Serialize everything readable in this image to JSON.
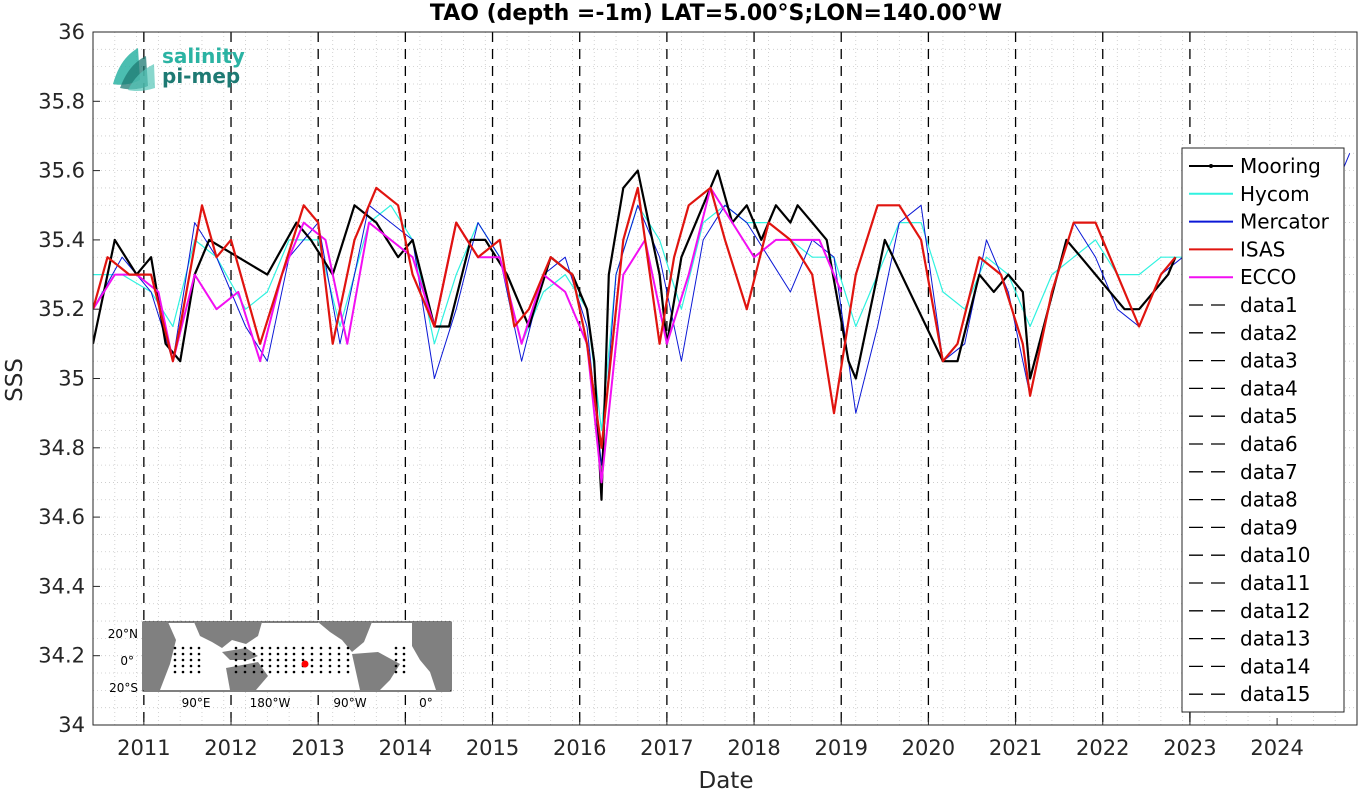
{
  "chart_data": {
    "type": "line",
    "title": "TAO (depth =-1m) LAT=5.00°S;LON=140.00°W",
    "xlabel": "Date",
    "ylabel": "SSS",
    "xlim": [
      "2010-06-01",
      "2024-12-01"
    ],
    "ylim": [
      34,
      36
    ],
    "grid": "minor-dotted",
    "legend_position": "right",
    "x_ticks": [
      "2011",
      "2012",
      "2013",
      "2014",
      "2015",
      "2016",
      "2017",
      "2018",
      "2019",
      "2020",
      "2021",
      "2022",
      "2023",
      "2024"
    ],
    "y_ticks": [
      "34",
      "34.2",
      "34.4",
      "34.6",
      "34.8",
      "35",
      "35.2",
      "35.4",
      "35.6",
      "35.8",
      "36"
    ],
    "dashed_year_markers": [
      "2011",
      "2012",
      "2013",
      "2014",
      "2015",
      "2016",
      "2017",
      "2018",
      "2019",
      "2020",
      "2021",
      "2022",
      "2023"
    ],
    "series": [
      {
        "name": "Mooring",
        "color": "#000000",
        "x": [
          "2010-06",
          "2010-09",
          "2010-12",
          "2011-02",
          "2011-04",
          "2011-06",
          "2011-08",
          "2011-10",
          "2012-06",
          "2012-10",
          "2012-12",
          "2013-03",
          "2013-06",
          "2013-09",
          "2013-12",
          "2014-02",
          "2014-05",
          "2014-07",
          "2014-10",
          "2014-12",
          "2015-03",
          "2015-06",
          "2015-09",
          "2015-12",
          "2016-02",
          "2016-03",
          "2016-04",
          "2016-05",
          "2016-07",
          "2016-09",
          "2016-12",
          "2017-01",
          "2017-03",
          "2017-05",
          "2017-08",
          "2017-10",
          "2017-12",
          "2018-02",
          "2018-04",
          "2018-06",
          "2018-07",
          "2018-09",
          "2018-11",
          "2019-02",
          "2019-03",
          "2019-05",
          "2019-07",
          "2020-03",
          "2020-05",
          "2020-08",
          "2020-10",
          "2020-12",
          "2021-02",
          "2021-03",
          "2021-08",
          "2021-10",
          "2021-12",
          "2022-02",
          "2022-04",
          "2022-06",
          "2022-08",
          "2022-10",
          "2022-11"
        ],
        "y": [
          35.1,
          35.4,
          35.3,
          35.35,
          35.1,
          35.05,
          35.3,
          35.4,
          35.3,
          35.45,
          35.4,
          35.3,
          35.5,
          35.45,
          35.35,
          35.4,
          35.15,
          35.15,
          35.4,
          35.4,
          35.3,
          35.15,
          35.35,
          35.3,
          35.2,
          35.05,
          34.65,
          35.3,
          35.55,
          35.6,
          35.3,
          35.1,
          35.35,
          35.45,
          35.6,
          35.45,
          35.5,
          35.4,
          35.5,
          35.45,
          35.5,
          35.45,
          35.4,
          35.05,
          35.0,
          35.2,
          35.4,
          35.05,
          35.05,
          35.3,
          35.25,
          35.3,
          35.25,
          35.0,
          35.4,
          35.35,
          35.3,
          35.25,
          35.2,
          35.2,
          35.25,
          35.3,
          35.35
        ]
      },
      {
        "name": "Hycom",
        "color": "#30f2e0",
        "x": [
          "2010-06",
          "2010-10",
          "2011-02",
          "2011-05",
          "2011-08",
          "2011-11",
          "2012-03",
          "2012-06",
          "2012-09",
          "2013-01",
          "2013-04",
          "2013-08",
          "2013-11",
          "2014-02",
          "2014-05",
          "2014-08",
          "2014-11",
          "2015-02",
          "2015-05",
          "2015-08",
          "2015-11",
          "2016-02",
          "2016-04",
          "2016-06",
          "2016-09",
          "2016-12",
          "2017-03",
          "2017-06",
          "2017-09",
          "2017-12",
          "2018-03",
          "2018-06",
          "2018-09",
          "2018-12",
          "2019-03",
          "2019-06",
          "2019-09",
          "2019-12",
          "2020-03",
          "2020-06",
          "2020-09",
          "2020-12",
          "2021-03",
          "2021-06",
          "2021-09",
          "2021-12",
          "2022-03",
          "2022-06",
          "2022-09",
          "2022-12",
          "2023-03"
        ],
        "y": [
          35.3,
          35.3,
          35.25,
          35.15,
          35.4,
          35.35,
          35.2,
          35.25,
          35.4,
          35.4,
          35.15,
          35.45,
          35.5,
          35.4,
          35.1,
          35.3,
          35.45,
          35.35,
          35.1,
          35.25,
          35.3,
          35.2,
          34.85,
          35.3,
          35.5,
          35.4,
          35.2,
          35.45,
          35.5,
          35.45,
          35.45,
          35.4,
          35.35,
          35.35,
          35.15,
          35.3,
          35.45,
          35.45,
          35.25,
          35.2,
          35.35,
          35.3,
          35.15,
          35.3,
          35.35,
          35.4,
          35.3,
          35.3,
          35.35,
          35.35,
          35.4
        ]
      },
      {
        "name": "Mercator",
        "color": "#0b18d6",
        "x": [
          "2010-06",
          "2010-10",
          "2011-02",
          "2011-05",
          "2011-08",
          "2011-11",
          "2012-03",
          "2012-06",
          "2012-09",
          "2013-01",
          "2013-04",
          "2013-08",
          "2013-11",
          "2014-02",
          "2014-05",
          "2014-08",
          "2014-11",
          "2015-02",
          "2015-05",
          "2015-08",
          "2015-11",
          "2016-02",
          "2016-04",
          "2016-06",
          "2016-09",
          "2016-12",
          "2017-03",
          "2017-06",
          "2017-09",
          "2017-12",
          "2018-03",
          "2018-06",
          "2018-09",
          "2018-12",
          "2019-03",
          "2019-06",
          "2019-09",
          "2019-12",
          "2020-03",
          "2020-06",
          "2020-09",
          "2020-12",
          "2021-03",
          "2021-06",
          "2021-09",
          "2021-12",
          "2022-03",
          "2022-06",
          "2022-09",
          "2022-12",
          "2023-03",
          "2023-06",
          "2023-09",
          "2023-12",
          "2024-03",
          "2024-06",
          "2024-09",
          "2024-11"
        ],
        "y": [
          35.2,
          35.35,
          35.25,
          35.05,
          35.45,
          35.35,
          35.15,
          35.05,
          35.35,
          35.45,
          35.1,
          35.5,
          35.45,
          35.4,
          35.0,
          35.2,
          35.45,
          35.35,
          35.05,
          35.3,
          35.35,
          35.15,
          34.75,
          35.3,
          35.5,
          35.35,
          35.05,
          35.4,
          35.5,
          35.45,
          35.35,
          35.25,
          35.4,
          35.35,
          34.9,
          35.15,
          35.45,
          35.5,
          35.05,
          35.1,
          35.4,
          35.25,
          34.95,
          35.25,
          35.45,
          35.35,
          35.2,
          35.15,
          35.3,
          35.35,
          35.35,
          35.3,
          35.4,
          35.4,
          35.35,
          35.45,
          35.55,
          35.65
        ]
      },
      {
        "name": "ISAS",
        "color": "#e0140f",
        "x": [
          "2010-06",
          "2010-08",
          "2010-11",
          "2011-02",
          "2011-05",
          "2011-06",
          "2011-09",
          "2011-11",
          "2012-01",
          "2012-03",
          "2012-05",
          "2012-08",
          "2012-11",
          "2013-01",
          "2013-03",
          "2013-06",
          "2013-09",
          "2013-12",
          "2014-02",
          "2014-05",
          "2014-08",
          "2014-11",
          "2015-02",
          "2015-04",
          "2015-06",
          "2015-09",
          "2015-12",
          "2016-02",
          "2016-04",
          "2016-07",
          "2016-09",
          "2016-12",
          "2017-02",
          "2017-04",
          "2017-07",
          "2017-09",
          "2017-12",
          "2018-03",
          "2018-06",
          "2018-09",
          "2018-12",
          "2019-03",
          "2019-06",
          "2019-09",
          "2019-12",
          "2020-03",
          "2020-05",
          "2020-08",
          "2020-11",
          "2021-02",
          "2021-03",
          "2021-06",
          "2021-09",
          "2021-12",
          "2022-03",
          "2022-06",
          "2022-09",
          "2022-11"
        ],
        "y": [
          35.2,
          35.35,
          35.3,
          35.3,
          35.05,
          35.15,
          35.5,
          35.35,
          35.4,
          35.25,
          35.1,
          35.3,
          35.5,
          35.45,
          35.1,
          35.4,
          35.55,
          35.5,
          35.3,
          35.15,
          35.45,
          35.35,
          35.4,
          35.15,
          35.2,
          35.35,
          35.3,
          35.1,
          34.8,
          35.4,
          35.55,
          35.1,
          35.35,
          35.5,
          35.55,
          35.4,
          35.2,
          35.45,
          35.4,
          35.3,
          34.9,
          35.3,
          35.5,
          35.5,
          35.4,
          35.05,
          35.1,
          35.35,
          35.3,
          35.1,
          34.95,
          35.25,
          35.45,
          35.45,
          35.3,
          35.15,
          35.3,
          35.35
        ]
      },
      {
        "name": "ECCO",
        "color": "#f20ff2",
        "x": [
          "2010-06",
          "2010-09",
          "2010-12",
          "2011-03",
          "2011-05",
          "2011-08",
          "2011-11",
          "2012-02",
          "2012-05",
          "2012-08",
          "2012-11",
          "2013-02",
          "2013-05",
          "2013-08",
          "2013-11",
          "2014-02",
          "2014-05",
          "2014-08",
          "2014-11",
          "2015-02",
          "2015-05",
          "2015-08",
          "2015-11",
          "2016-02",
          "2016-04",
          "2016-07",
          "2016-10",
          "2017-01",
          "2017-04",
          "2017-07",
          "2017-10",
          "2018-01",
          "2018-04",
          "2018-07",
          "2018-10",
          "2019-01"
        ],
        "y": [
          35.2,
          35.3,
          35.3,
          35.25,
          35.05,
          35.3,
          35.2,
          35.25,
          35.05,
          35.3,
          35.45,
          35.4,
          35.1,
          35.45,
          35.4,
          35.35,
          35.15,
          35.45,
          35.35,
          35.35,
          35.1,
          35.3,
          35.25,
          35.1,
          34.7,
          35.3,
          35.4,
          35.1,
          35.3,
          35.55,
          35.45,
          35.35,
          35.4,
          35.4,
          35.4,
          35.25
        ]
      }
    ],
    "legend": [
      "Mooring",
      "Hycom",
      "Mercator",
      "ISAS",
      "ECCO",
      "data1",
      "data2",
      "data3",
      "data4",
      "data5",
      "data6",
      "data7",
      "data8",
      "data9",
      "data10",
      "data11",
      "data12",
      "data13",
      "data14",
      "data15"
    ],
    "logo": {
      "line1": "salinity",
      "line2": "pi-mep",
      "colors": [
        "#2bb3a3",
        "#1e7a73"
      ]
    },
    "inset_map": {
      "lat_labels": [
        "20°N",
        "0°",
        "20°S"
      ],
      "lon_labels": [
        "90°E",
        "180°W",
        "90°W",
        "0°"
      ],
      "ocean_color": "#ffffff",
      "land_color": "#808080",
      "highlight_color": "#ff0000"
    }
  }
}
